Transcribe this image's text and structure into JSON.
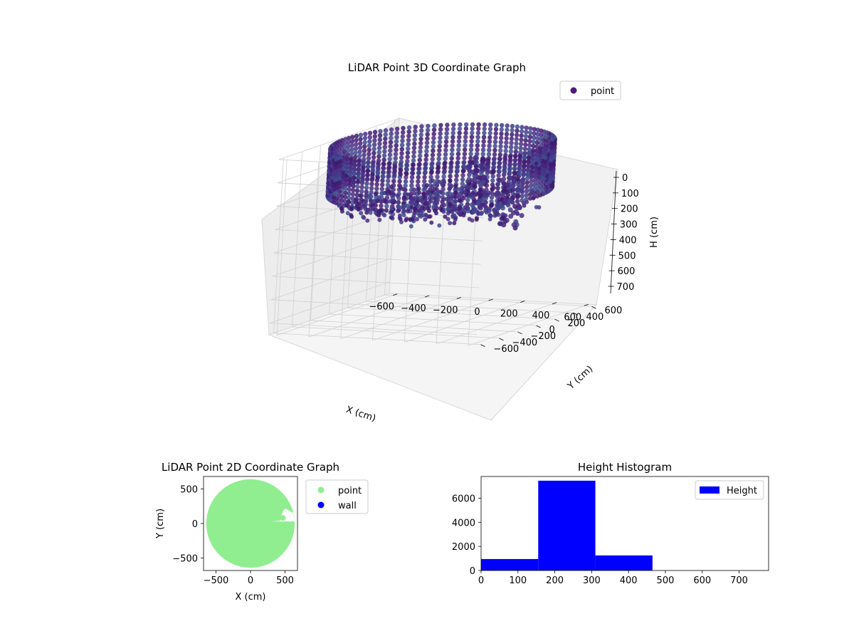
{
  "chart_data": [
    {
      "type": "scatter",
      "projection": "3d",
      "title": "LiDAR Point 3D Coordinate Graph",
      "xlabel": "X (cm)",
      "ylabel": "Y (cm)",
      "zlabel": "H (cm)",
      "xlim": [
        -650,
        650
      ],
      "ylim": [
        -650,
        650
      ],
      "zlim": [
        0,
        750
      ],
      "z_inverted": true,
      "x_ticks": [
        "−600",
        "−400",
        "−200",
        "0",
        "200",
        "400",
        "600"
      ],
      "y_ticks": [
        "−600",
        "−400",
        "−200",
        "0",
        "200",
        "400",
        "600"
      ],
      "z_ticks": [
        "0",
        "100",
        "200",
        "300",
        "400",
        "500",
        "600",
        "700"
      ],
      "legend": {
        "position": "upper-right",
        "entries": [
          "point"
        ]
      },
      "grid": true,
      "series": [
        {
          "name": "point",
          "color": "#4b1e7a",
          "ring": {
            "radius": 610,
            "h_top": 0,
            "h_bottom": 200
          },
          "floor": {
            "radius": 550,
            "h": 250
          },
          "clusters": [
            {
              "x": 130,
              "y": 190,
              "h_top": 80,
              "h_bottom": 320
            },
            {
              "x": 300,
              "y": 240,
              "h_top": 150,
              "h_bottom": 380
            }
          ]
        }
      ]
    },
    {
      "type": "scatter",
      "title": "LiDAR Point 2D Coordinate Graph",
      "xlabel": "X (cm)",
      "ylabel": "Y (cm)",
      "xlim": [
        -680,
        680
      ],
      "ylim": [
        -680,
        680
      ],
      "x_ticks": [
        "−500",
        "0",
        "500"
      ],
      "y_ticks": [
        "−500",
        "0",
        "500"
      ],
      "legend": {
        "position": "outside-right",
        "entries": [
          "point",
          "wall"
        ]
      },
      "series": [
        {
          "name": "point",
          "color": "#90ee90",
          "shape": "disk",
          "radius": 640
        },
        {
          "name": "wall",
          "color": "#0000ff"
        }
      ]
    },
    {
      "type": "bar",
      "title": "Height Histogram",
      "xlim": [
        0,
        780
      ],
      "ylim": [
        0,
        7800
      ],
      "x_ticks": [
        "0",
        "100",
        "200",
        "300",
        "400",
        "500",
        "600",
        "700"
      ],
      "y_ticks": [
        "0",
        "2000",
        "4000",
        "6000"
      ],
      "legend": {
        "position": "upper-right",
        "entries": [
          "Height"
        ]
      },
      "series": [
        {
          "name": "Height",
          "color": "#0000ff",
          "bins": [
            {
              "from": 0,
              "to": 155,
              "count": 950
            },
            {
              "from": 155,
              "to": 310,
              "count": 7450
            },
            {
              "from": 310,
              "to": 465,
              "count": 1250
            },
            {
              "from": 465,
              "to": 620,
              "count": 0
            },
            {
              "from": 620,
              "to": 775,
              "count": 0
            }
          ]
        }
      ]
    }
  ]
}
